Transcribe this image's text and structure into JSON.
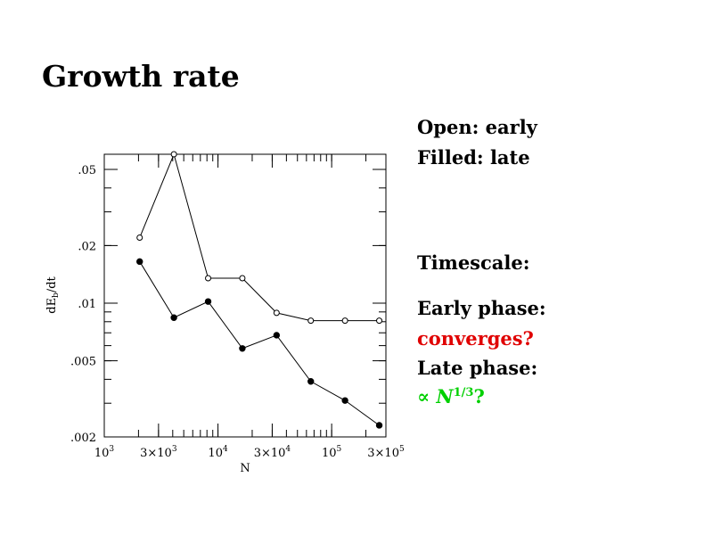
{
  "slide": {
    "title": "Growth rate",
    "legend_open": "Open: early",
    "legend_filled": "Filled: late",
    "timescale": "Timescale:",
    "early_phase": "Early phase:",
    "converges": "converges?",
    "late_phase": "Late phase:",
    "prop_symbol": "∝",
    "prop_N": "N",
    "prop_exp": "1/3",
    "prop_q": "?",
    "colors": {
      "red": "#e00000",
      "green": "#00d000"
    }
  },
  "chart_data": {
    "type": "line",
    "title": "",
    "xlabel": "N",
    "ylabel": "dE_b/dt",
    "xscale": "log",
    "yscale": "log",
    "xlim": [
      1000,
      300000
    ],
    "ylim": [
      0.002,
      0.06
    ],
    "x_ticks": [
      {
        "value": 1000,
        "base": "10",
        "exp": "3"
      },
      {
        "value": 3000,
        "base": "3×10",
        "exp": "3"
      },
      {
        "value": 10000,
        "base": "10",
        "exp": "4"
      },
      {
        "value": 30000,
        "base": "3×10",
        "exp": "4"
      },
      {
        "value": 100000,
        "base": "10",
        "exp": "5"
      },
      {
        "value": 300000,
        "base": "3×10",
        "exp": "5"
      }
    ],
    "y_ticks": [
      {
        "value": 0.002,
        "label": ".002"
      },
      {
        "value": 0.005,
        "label": ".005"
      },
      {
        "value": 0.01,
        "label": ".01"
      },
      {
        "value": 0.02,
        "label": ".02"
      },
      {
        "value": 0.05,
        "label": ".05"
      }
    ],
    "series": [
      {
        "marker": "open",
        "points": [
          {
            "x": 2048,
            "y": 0.022
          },
          {
            "x": 4096,
            "y": 0.06
          },
          {
            "x": 8192,
            "y": 0.0135
          },
          {
            "x": 16384,
            "y": 0.0135
          },
          {
            "x": 32768,
            "y": 0.0089
          },
          {
            "x": 65536,
            "y": 0.0081
          },
          {
            "x": 131072,
            "y": 0.0081
          },
          {
            "x": 262144,
            "y": 0.0081
          }
        ]
      },
      {
        "marker": "filled",
        "points": [
          {
            "x": 2048,
            "y": 0.0165
          },
          {
            "x": 4096,
            "y": 0.0084
          },
          {
            "x": 8192,
            "y": 0.0102
          },
          {
            "x": 16384,
            "y": 0.0058
          },
          {
            "x": 32768,
            "y": 0.0068
          },
          {
            "x": 65536,
            "y": 0.0039
          },
          {
            "x": 131072,
            "y": 0.0031
          },
          {
            "x": 262144,
            "y": 0.0023
          }
        ]
      }
    ]
  }
}
